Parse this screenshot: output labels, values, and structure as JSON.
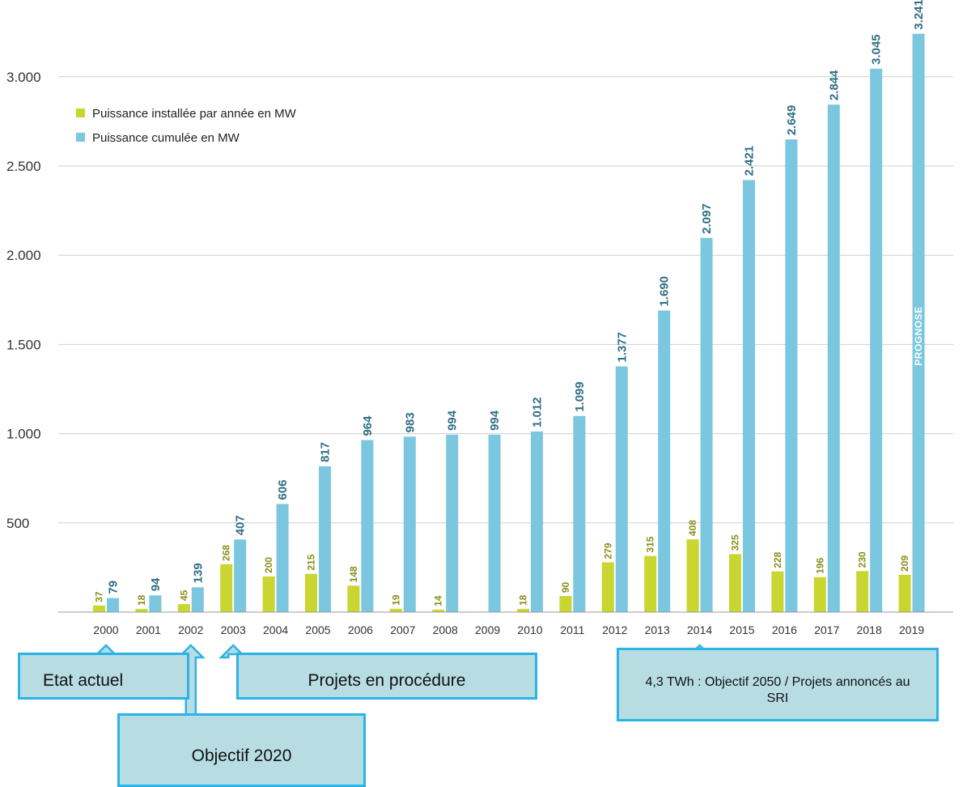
{
  "chart_data": {
    "type": "bar",
    "categories": [
      "2000",
      "2001",
      "2002",
      "2003",
      "2004",
      "2005",
      "2006",
      "2007",
      "2008",
      "2009",
      "2010",
      "2011",
      "2012",
      "2013",
      "2014",
      "2015",
      "2016",
      "2017",
      "2018",
      "2019"
    ],
    "series": [
      {
        "name": "Puissance installée par année en MW",
        "color": "#c9d632",
        "values": [
          37,
          18,
          45,
          268,
          200,
          215,
          148,
          19,
          14,
          null,
          18,
          90,
          279,
          315,
          408,
          325,
          228,
          196,
          230,
          209
        ],
        "labels": [
          "37",
          "18",
          "45",
          "268",
          "200",
          "215",
          "148",
          "19",
          "14",
          "",
          "18",
          "90",
          "279",
          "315",
          "408",
          "325",
          "228",
          "196",
          "230",
          "209"
        ]
      },
      {
        "name": "Puissance cumulée en MW",
        "color": "#7ac7df",
        "values": [
          79,
          94,
          139,
          407,
          606,
          817,
          964,
          983,
          994,
          994,
          1012,
          1099,
          1377,
          1690,
          2097,
          2421,
          2649,
          2844,
          3045,
          3241
        ],
        "labels": [
          "79",
          "94",
          "139",
          "407",
          "606",
          "817",
          "964",
          "983",
          "994",
          "994",
          "1.012",
          "1.099",
          "1.377",
          "1.690",
          "2.097",
          "2.421",
          "2.649",
          "2.844",
          "3.045",
          "3.241"
        ]
      }
    ],
    "yticks": [
      {
        "value": 500,
        "label": "500"
      },
      {
        "value": 1000,
        "label": "1.000"
      },
      {
        "value": 1500,
        "label": "1.500"
      },
      {
        "value": 2000,
        "label": "2.000"
      },
      {
        "value": 2500,
        "label": "2.500"
      },
      {
        "value": 3000,
        "label": "3.000"
      }
    ],
    "ylim": [
      0,
      3300
    ],
    "grid": true,
    "legend_position": "top-left",
    "annotations": [
      {
        "text": "PROGNOSE",
        "category": "2019"
      }
    ]
  },
  "callouts": {
    "etat_actuel": {
      "text": "Etat actuel",
      "points_to": "2000"
    },
    "objectif_2020": {
      "text": "Objectif 2020",
      "points_to": "2002"
    },
    "projets": {
      "text": "Projets en procédure",
      "points_to": "2003"
    },
    "twh": {
      "text": "4,3 TWh : Objectif 2050 / Projets annoncés au SRI",
      "points_to": "2014"
    }
  },
  "colors": {
    "callout_fill": "#b7dde3",
    "callout_border": "#2ab3e6",
    "arrow_fill": "#b7dde3",
    "arrow_stroke": "#2ab3e6"
  }
}
